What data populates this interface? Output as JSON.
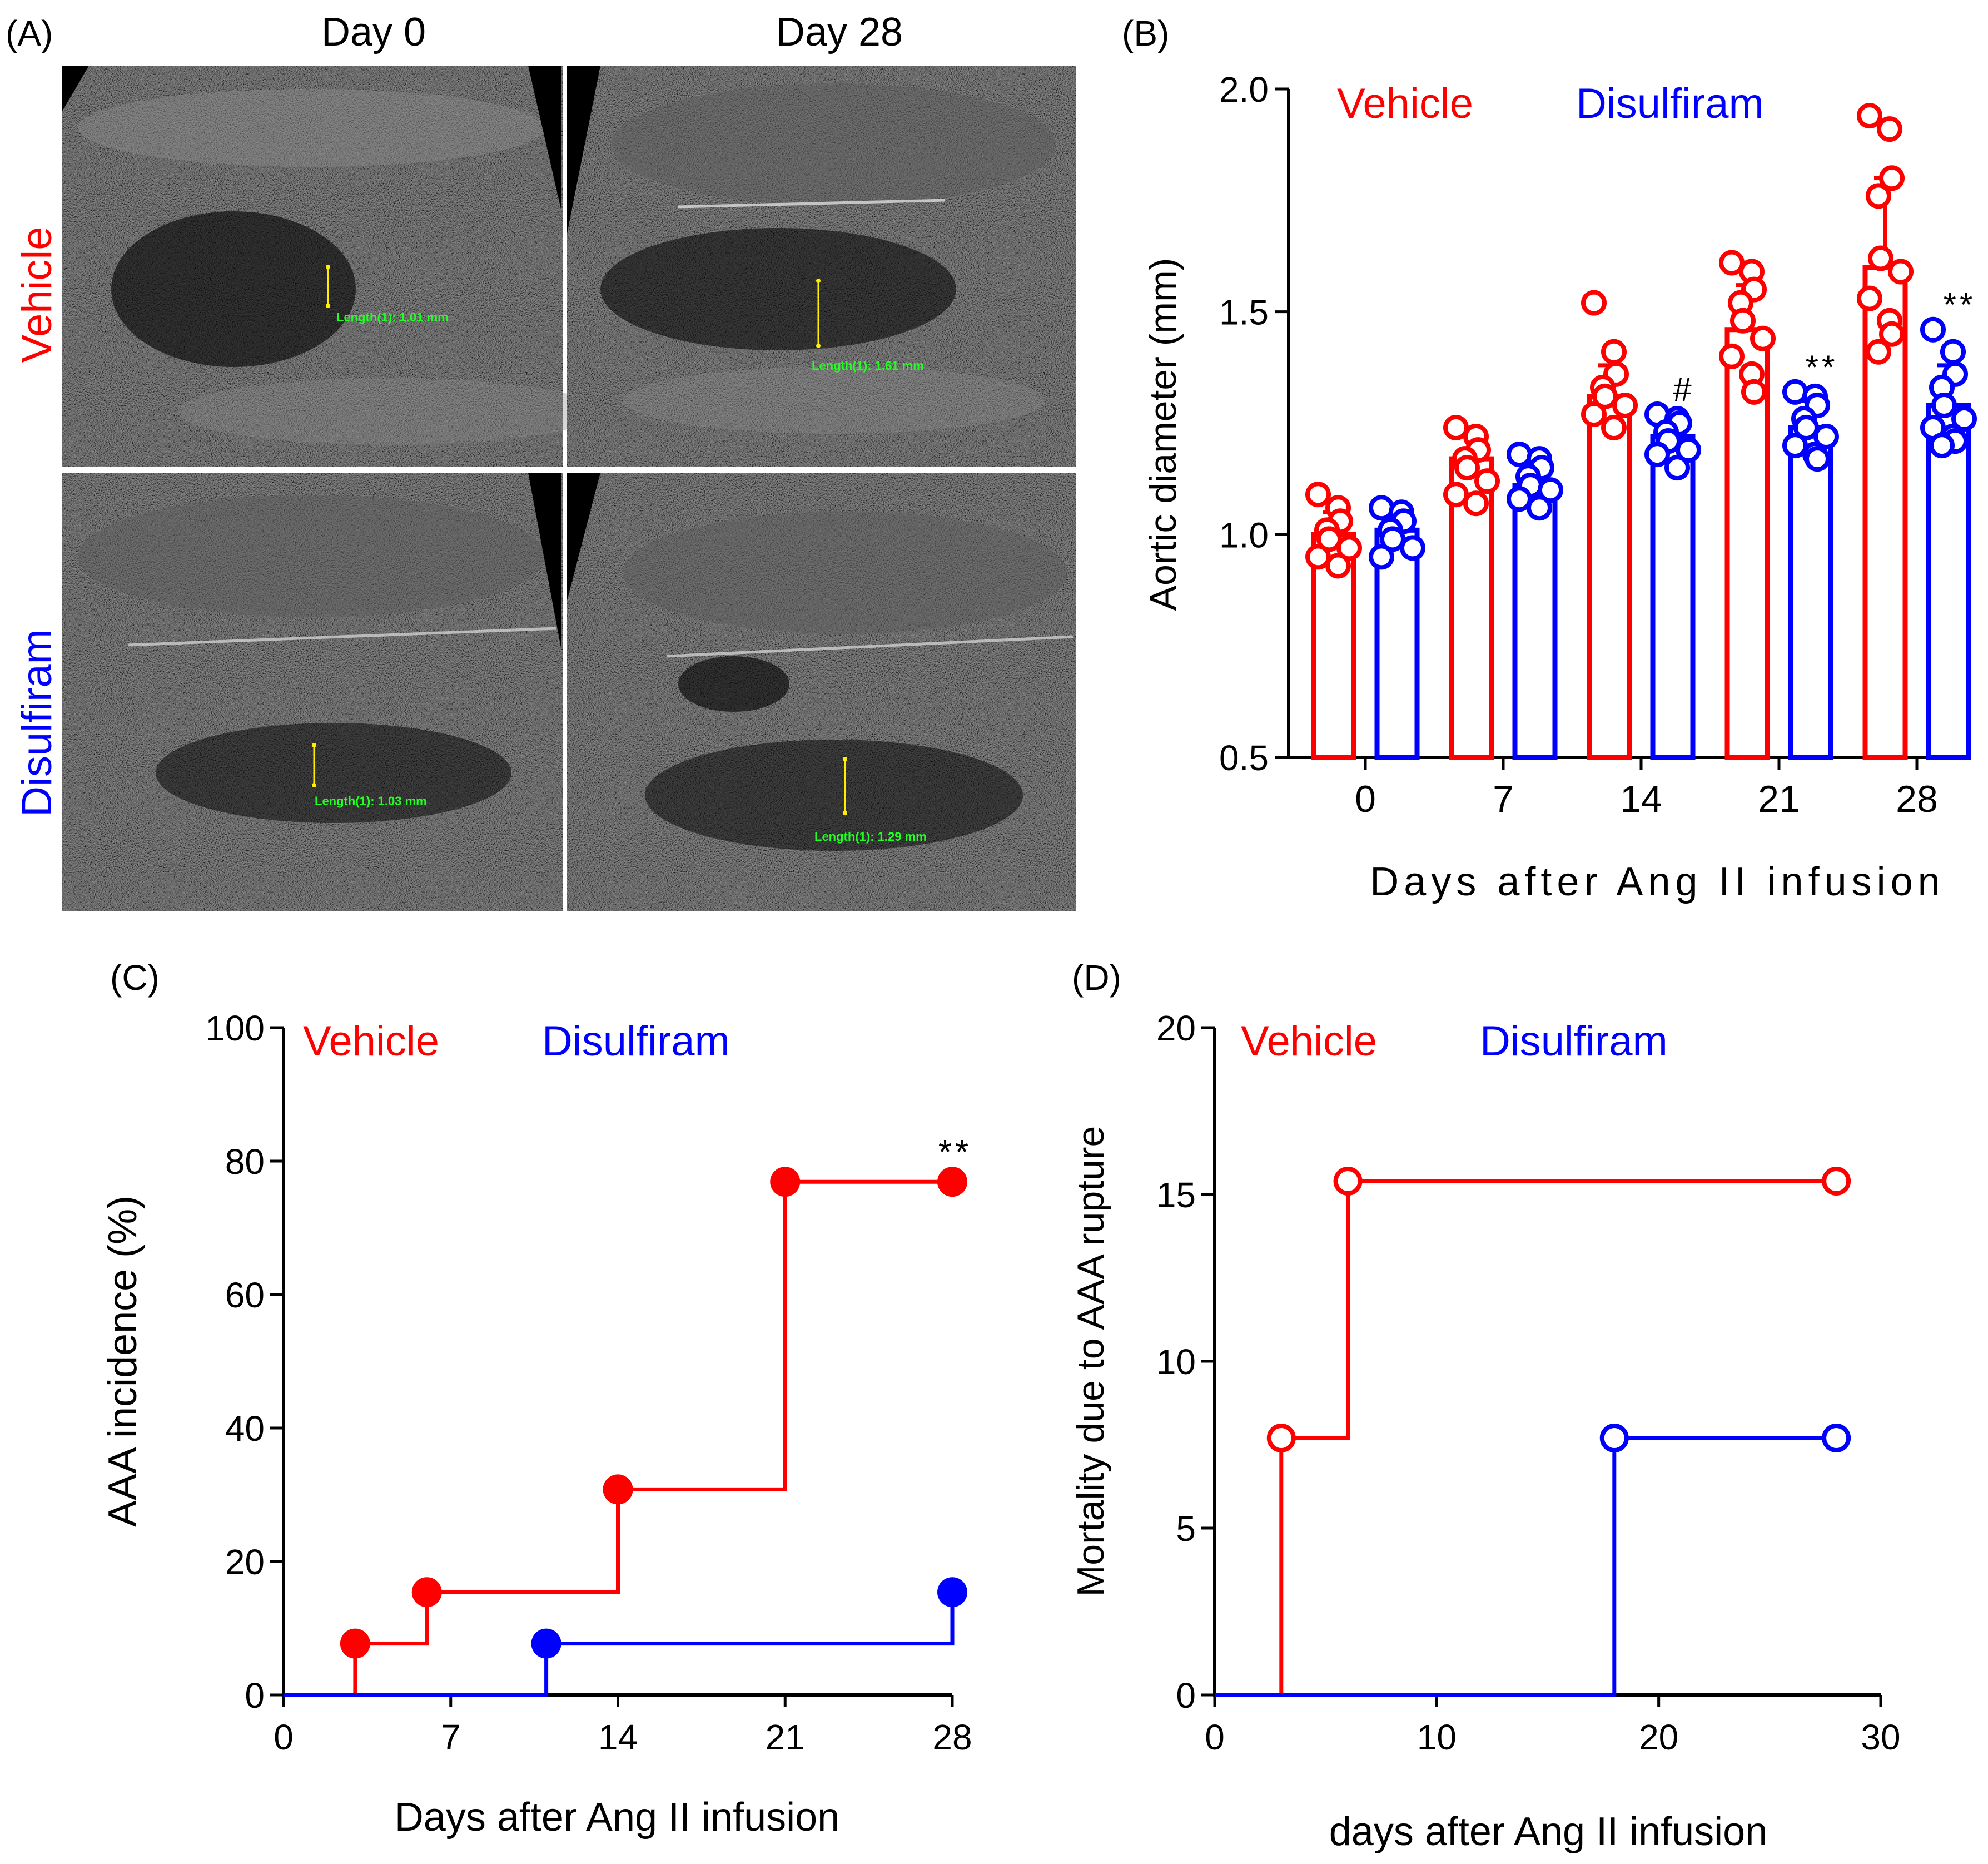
{
  "colors": {
    "vehicle": "#ff0000",
    "disulfiram": "#0000ff",
    "axis": "#000000",
    "measure_text": "#22ff22",
    "measure_line": "#ffee00"
  },
  "panelA": {
    "label": "(A)",
    "col_titles": [
      "Day 0",
      "Day 28"
    ],
    "row_labels": [
      "Vehicle",
      "Disulfiram"
    ],
    "measurements": [
      "Length(1): 1.01 mm",
      "Length(1): 1.61 mm",
      "Length(1): 1.03 mm",
      "Length(1): 1.29 mm"
    ]
  },
  "panelB": {
    "label": "(B)",
    "legend": [
      "Vehicle",
      "Disulfiram"
    ]
  },
  "panelC": {
    "label": "(C)",
    "legend": [
      "Vehicle",
      "Disulfiram"
    ]
  },
  "panelD": {
    "label": "(D)",
    "legend": [
      "Vehicle",
      "Disulfiram"
    ]
  },
  "chart_data": [
    {
      "panel": "B",
      "type": "bar",
      "xlabel": "Days after Ang II infusion",
      "ylabel": "Aortic diameter (mm)",
      "categories": [
        "0",
        "7",
        "14",
        "21",
        "28"
      ],
      "ylim": [
        0.5,
        2.0
      ],
      "yticks": [
        "0.5",
        "1.0",
        "1.5",
        "2.0"
      ],
      "series": [
        {
          "name": "Vehicle",
          "color": "#ff0000",
          "values": [
            1.0,
            1.17,
            1.31,
            1.46,
            1.6
          ],
          "sd": [
            0.05,
            0.05,
            0.07,
            0.1,
            0.2
          ],
          "points": [
            [
              1.09,
              1.06,
              1.03,
              1.01,
              0.99,
              0.97,
              0.95,
              0.93
            ],
            [
              1.24,
              1.22,
              1.19,
              1.17,
              1.15,
              1.12,
              1.09,
              1.07
            ],
            [
              1.52,
              1.41,
              1.36,
              1.33,
              1.31,
              1.29,
              1.27,
              1.24
            ],
            [
              1.61,
              1.59,
              1.55,
              1.52,
              1.48,
              1.44,
              1.4,
              1.36,
              1.32
            ],
            [
              1.94,
              1.91,
              1.8,
              1.76,
              1.62,
              1.59,
              1.53,
              1.48,
              1.45,
              1.41
            ]
          ],
          "annotations": [
            "",
            "",
            "",
            "",
            ""
          ]
        },
        {
          "name": "Disulfiram",
          "color": "#0000ff",
          "values": [
            1.01,
            1.11,
            1.22,
            1.24,
            1.29
          ],
          "sd": [
            0.04,
            0.05,
            0.05,
            0.06,
            0.09
          ],
          "points": [
            [
              1.06,
              1.05,
              1.03,
              1.01,
              0.99,
              0.97,
              0.95
            ],
            [
              1.18,
              1.17,
              1.15,
              1.13,
              1.11,
              1.1,
              1.08,
              1.06
            ],
            [
              1.27,
              1.26,
              1.25,
              1.23,
              1.21,
              1.19,
              1.18,
              1.15
            ],
            [
              1.32,
              1.31,
              1.29,
              1.26,
              1.24,
              1.22,
              1.2,
              1.18,
              1.17
            ],
            [
              1.46,
              1.41,
              1.36,
              1.33,
              1.29,
              1.26,
              1.24,
              1.22,
              1.21,
              1.2
            ]
          ],
          "annotations": [
            "",
            "",
            "#",
            "**",
            "**"
          ]
        }
      ]
    },
    {
      "panel": "C",
      "type": "line",
      "xlabel": "Days after Ang II infusion",
      "ylabel": "AAA incidence (%)",
      "xlim": [
        0,
        28
      ],
      "ylim": [
        0,
        100
      ],
      "xticks": [
        0,
        7,
        14,
        21,
        28
      ],
      "yticks": [
        0,
        20,
        40,
        60,
        80,
        100
      ],
      "series": [
        {
          "name": "Vehicle",
          "color": "#ff0000",
          "marker": "filled",
          "steps": [
            [
              0,
              0
            ],
            [
              3,
              7.7
            ],
            [
              6,
              15.4
            ],
            [
              14,
              30.8
            ],
            [
              21,
              76.9
            ],
            [
              28,
              76.9
            ]
          ],
          "markers": [
            [
              3,
              7.7
            ],
            [
              6,
              15.4
            ],
            [
              14,
              30.8
            ],
            [
              21,
              76.9
            ],
            [
              28,
              76.9
            ]
          ]
        },
        {
          "name": "Disulfiram",
          "color": "#0000ff",
          "marker": "filled",
          "steps": [
            [
              0,
              0
            ],
            [
              11,
              7.7
            ],
            [
              28,
              15.4
            ]
          ],
          "markers": [
            [
              11,
              7.7
            ],
            [
              28,
              15.4
            ]
          ]
        }
      ],
      "annotation": {
        "text": "**",
        "x": 28,
        "y": 76.9
      }
    },
    {
      "panel": "D",
      "type": "line",
      "xlabel": "days after Ang II infusion",
      "ylabel": "Mortality due to AAA rupture",
      "xlim": [
        0,
        30
      ],
      "ylim": [
        0,
        20
      ],
      "xticks": [
        0,
        10,
        20,
        30
      ],
      "yticks": [
        0,
        5,
        10,
        15,
        20
      ],
      "series": [
        {
          "name": "Vehicle",
          "color": "#ff0000",
          "marker": "open",
          "steps": [
            [
              0,
              0
            ],
            [
              3,
              7.7
            ],
            [
              6,
              15.4
            ],
            [
              28,
              15.4
            ]
          ],
          "markers": [
            [
              3,
              7.7
            ],
            [
              6,
              15.4
            ],
            [
              28,
              15.4
            ]
          ]
        },
        {
          "name": "Disulfiram",
          "color": "#0000ff",
          "marker": "open",
          "steps": [
            [
              0,
              0
            ],
            [
              18,
              7.7
            ],
            [
              28,
              7.7
            ]
          ],
          "markers": [
            [
              18,
              7.7
            ],
            [
              28,
              7.7
            ]
          ]
        }
      ]
    }
  ]
}
